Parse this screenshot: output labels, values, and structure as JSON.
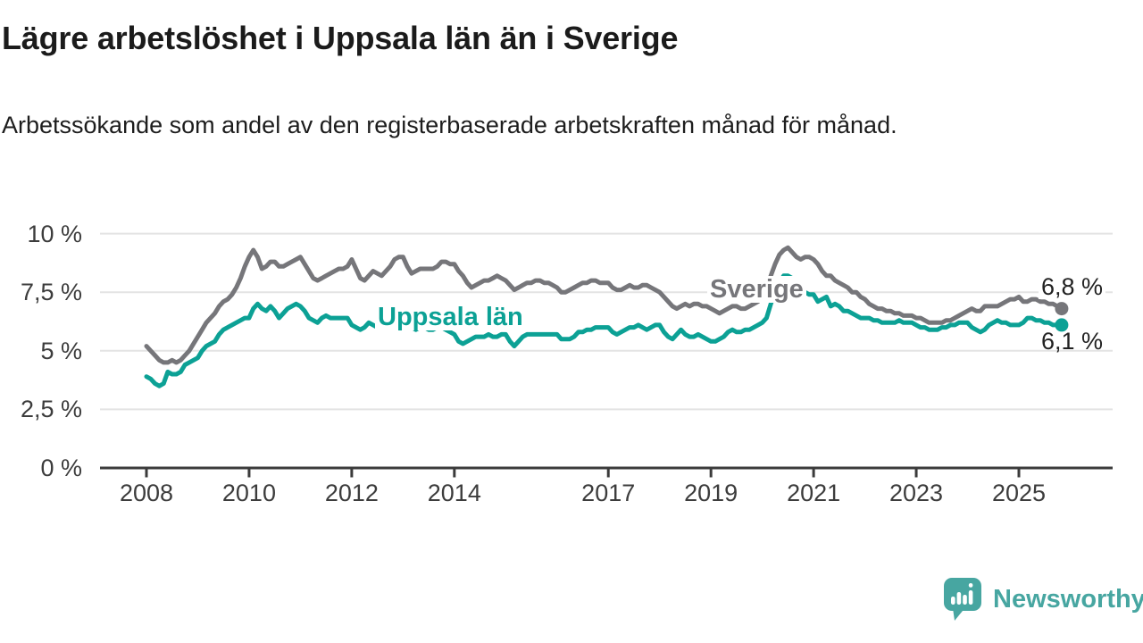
{
  "chart_data": {
    "type": "line",
    "title": "Lägre arbetslöshet i Uppsala län än i Sverige",
    "subtitle": "Arbetssökande som andel av den registerbaserade arbetskraften månad för månad.",
    "unit": "%",
    "frequency": "monthly",
    "x_start": "2008-01",
    "x_end": "2025-11",
    "grid": "horizontal",
    "ylim": [
      0,
      10
    ],
    "y_axis": {
      "ticks": [
        {
          "label": "10 %",
          "value": 10
        },
        {
          "label": "7,5 %",
          "value": 7.5
        },
        {
          "label": "5 %",
          "value": 5
        },
        {
          "label": "2,5 %",
          "value": 2.5
        },
        {
          "label": "0 %",
          "value": 0
        }
      ]
    },
    "x_axis": {
      "ticks": [
        {
          "label": "2008",
          "year": 2008
        },
        {
          "label": "2010",
          "year": 2010
        },
        {
          "label": "2012",
          "year": 2012
        },
        {
          "label": "2014",
          "year": 2014
        },
        {
          "label": "2017",
          "year": 2017
        },
        {
          "label": "2019",
          "year": 2019
        },
        {
          "label": "2021",
          "year": 2021
        },
        {
          "label": "2023",
          "year": 2023
        },
        {
          "label": "2025",
          "year": 2025
        }
      ]
    },
    "series": [
      {
        "name": "Sverige",
        "color": "#76767a",
        "end_label": "6,8 %",
        "end_value": 6.8,
        "values": [
          5.2,
          5.0,
          4.8,
          4.6,
          4.5,
          4.5,
          4.6,
          4.5,
          4.6,
          4.8,
          5.0,
          5.3,
          5.6,
          5.9,
          6.2,
          6.4,
          6.6,
          6.9,
          7.1,
          7.2,
          7.4,
          7.7,
          8.1,
          8.6,
          9.0,
          9.3,
          9.0,
          8.5,
          8.6,
          8.8,
          8.8,
          8.6,
          8.6,
          8.7,
          8.8,
          8.9,
          9.0,
          8.7,
          8.4,
          8.1,
          8.0,
          8.1,
          8.2,
          8.3,
          8.4,
          8.5,
          8.5,
          8.6,
          8.9,
          8.5,
          8.1,
          8.0,
          8.2,
          8.4,
          8.3,
          8.2,
          8.4,
          8.6,
          8.9,
          9.0,
          9.0,
          8.6,
          8.3,
          8.4,
          8.5,
          8.5,
          8.5,
          8.5,
          8.6,
          8.8,
          8.8,
          8.7,
          8.7,
          8.4,
          8.2,
          7.9,
          7.7,
          7.8,
          7.9,
          8.0,
          8.0,
          8.1,
          8.2,
          8.1,
          8.0,
          7.8,
          7.6,
          7.7,
          7.8,
          7.9,
          7.9,
          8.0,
          8.0,
          7.9,
          7.9,
          7.8,
          7.7,
          7.5,
          7.5,
          7.6,
          7.7,
          7.8,
          7.9,
          7.9,
          8.0,
          8.0,
          7.9,
          7.9,
          7.9,
          7.7,
          7.6,
          7.6,
          7.7,
          7.8,
          7.7,
          7.7,
          7.8,
          7.8,
          7.7,
          7.6,
          7.5,
          7.3,
          7.1,
          6.9,
          6.8,
          6.9,
          7.0,
          6.9,
          7.0,
          7.0,
          6.9,
          6.9,
          6.8,
          6.7,
          6.6,
          6.7,
          6.8,
          6.9,
          6.9,
          6.8,
          6.8,
          6.9,
          7.0,
          7.1,
          7.3,
          7.7,
          8.2,
          8.7,
          9.1,
          9.3,
          9.4,
          9.2,
          9.0,
          8.9,
          9.0,
          9.0,
          8.9,
          8.7,
          8.4,
          8.2,
          8.2,
          8.0,
          7.9,
          7.8,
          7.7,
          7.5,
          7.5,
          7.3,
          7.2,
          7.0,
          6.9,
          6.8,
          6.8,
          6.7,
          6.7,
          6.6,
          6.6,
          6.5,
          6.5,
          6.5,
          6.4,
          6.4,
          6.3,
          6.2,
          6.2,
          6.2,
          6.2,
          6.3,
          6.3,
          6.4,
          6.5,
          6.6,
          6.7,
          6.8,
          6.7,
          6.7,
          6.9,
          6.9,
          6.9,
          6.9,
          7.0,
          7.1,
          7.2,
          7.2,
          7.3,
          7.1,
          7.1,
          7.2,
          7.2,
          7.1,
          7.1,
          7.0,
          7.0,
          6.9,
          6.8
        ]
      },
      {
        "name": "Uppsala län",
        "color": "#0ca195",
        "end_label": "6,1 %",
        "end_value": 6.1,
        "values": [
          3.9,
          3.8,
          3.6,
          3.5,
          3.6,
          4.1,
          4.0,
          4.0,
          4.1,
          4.4,
          4.5,
          4.6,
          4.7,
          5.0,
          5.2,
          5.3,
          5.4,
          5.7,
          5.9,
          6.0,
          6.1,
          6.2,
          6.3,
          6.4,
          6.4,
          6.8,
          7.0,
          6.8,
          6.7,
          6.9,
          6.7,
          6.4,
          6.6,
          6.8,
          6.9,
          7.0,
          6.9,
          6.7,
          6.4,
          6.3,
          6.2,
          6.4,
          6.5,
          6.4,
          6.4,
          6.4,
          6.4,
          6.4,
          6.1,
          6.0,
          5.9,
          6.0,
          6.2,
          6.1,
          6.0,
          6.0,
          6.1,
          6.2,
          6.2,
          6.3,
          6.3,
          6.1,
          6.0,
          5.9,
          6.0,
          6.0,
          5.9,
          5.9,
          6.0,
          6.0,
          5.9,
          5.8,
          5.7,
          5.4,
          5.3,
          5.4,
          5.5,
          5.6,
          5.6,
          5.6,
          5.7,
          5.6,
          5.6,
          5.7,
          5.7,
          5.4,
          5.2,
          5.4,
          5.6,
          5.7,
          5.7,
          5.7,
          5.7,
          5.7,
          5.7,
          5.7,
          5.7,
          5.5,
          5.5,
          5.5,
          5.6,
          5.8,
          5.8,
          5.9,
          5.9,
          6.0,
          6.0,
          6.0,
          6.0,
          5.8,
          5.7,
          5.8,
          5.9,
          6.0,
          6.0,
          6.1,
          6.0,
          5.9,
          6.0,
          6.1,
          6.1,
          5.8,
          5.6,
          5.5,
          5.7,
          5.9,
          5.7,
          5.6,
          5.6,
          5.7,
          5.6,
          5.5,
          5.4,
          5.4,
          5.5,
          5.6,
          5.8,
          5.9,
          5.8,
          5.8,
          5.9,
          5.9,
          6.0,
          6.1,
          6.2,
          6.4,
          7.0,
          7.5,
          7.9,
          8.2,
          8.2,
          8.1,
          7.8,
          7.6,
          7.5,
          7.4,
          7.4,
          7.1,
          7.2,
          7.3,
          6.9,
          7.0,
          6.9,
          6.7,
          6.7,
          6.6,
          6.5,
          6.4,
          6.4,
          6.4,
          6.3,
          6.3,
          6.2,
          6.2,
          6.2,
          6.2,
          6.3,
          6.2,
          6.2,
          6.2,
          6.1,
          6.0,
          6.0,
          5.9,
          5.9,
          5.9,
          6.0,
          6.0,
          6.1,
          6.1,
          6.2,
          6.2,
          6.2,
          6.0,
          5.9,
          5.8,
          5.9,
          6.1,
          6.2,
          6.3,
          6.2,
          6.2,
          6.1,
          6.1,
          6.1,
          6.2,
          6.4,
          6.4,
          6.3,
          6.3,
          6.2,
          6.2,
          6.1,
          6.1,
          6.1
        ]
      }
    ]
  },
  "logo": {
    "text": "Newsworthy",
    "color": "#47a6a1",
    "icon": "speech-bubble-bar-chart-icon"
  }
}
